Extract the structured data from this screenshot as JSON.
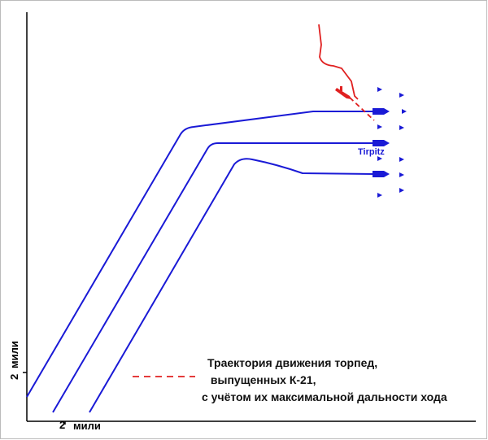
{
  "ship_label": "Tirpitz",
  "legend": [
    "Траектория движения торпед,",
    " выпущенных К-21,",
    "с учётом их максимальной дальности хода"
  ],
  "x_scale": {
    "number": "2",
    "unit": "мили"
  },
  "y_scale": {
    "number": "2",
    "unit": "мили"
  }
}
